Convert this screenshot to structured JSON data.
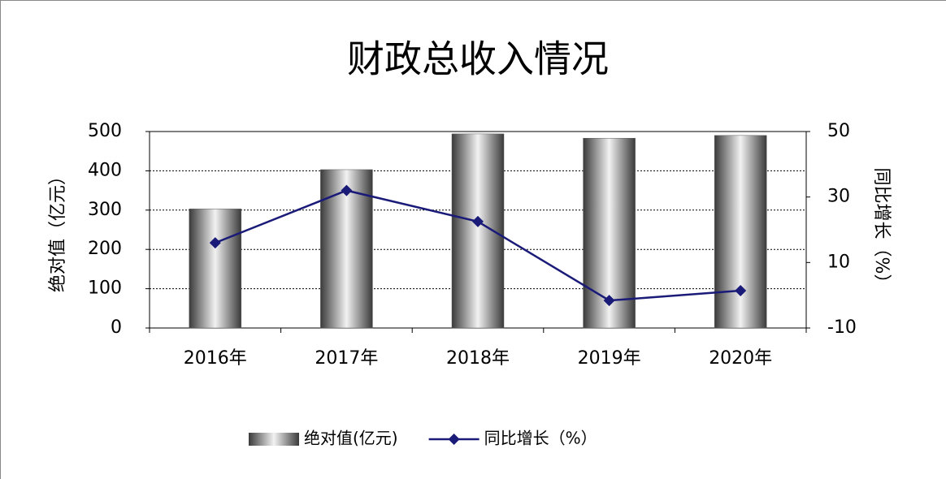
{
  "chart_data": {
    "type": "bar",
    "title": "财政总收入情况",
    "categories": [
      "2016年",
      "2017年",
      "2018年",
      "2019年",
      "2020年"
    ],
    "series": [
      {
        "name": "绝对值(亿元)",
        "type": "bar",
        "color": "#5a5a5a",
        "values": [
          303,
          403,
          494,
          483,
          490
        ]
      },
      {
        "name": "同比增长（%）",
        "type": "line",
        "axis": "y2",
        "color": "#1a1a78",
        "values": [
          16,
          32,
          22.5,
          -1.6,
          1.4
        ]
      }
    ],
    "ylabel": "绝对值（亿元）",
    "y2label": "同比增长（%）",
    "ylim": [
      0,
      500
    ],
    "yticks": [
      0,
      100,
      200,
      300,
      400,
      500
    ],
    "y2lim": [
      -10,
      50
    ],
    "y2ticks": [
      -10,
      10,
      30,
      50
    ],
    "grid": true,
    "legend": "bottom"
  }
}
